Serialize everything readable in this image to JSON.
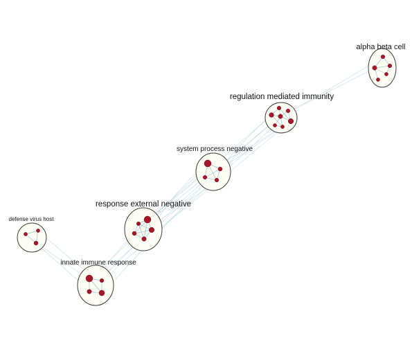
{
  "clusters": [
    {
      "id": "alpha",
      "label": "alpha beta cell"
    },
    {
      "id": "regulation",
      "label": "regulation mediated immunity"
    },
    {
      "id": "system",
      "label": "system process negative"
    },
    {
      "id": "response",
      "label": "response external negative"
    },
    {
      "id": "defense",
      "label": "defense virus host"
    },
    {
      "id": "innate",
      "label": "innate immune response"
    }
  ],
  "colors": {
    "node": "#a5162a",
    "ring_fill": "#fdfdf3",
    "ring_stroke": "#3a3a3a",
    "edge": "#a9cfdc"
  }
}
